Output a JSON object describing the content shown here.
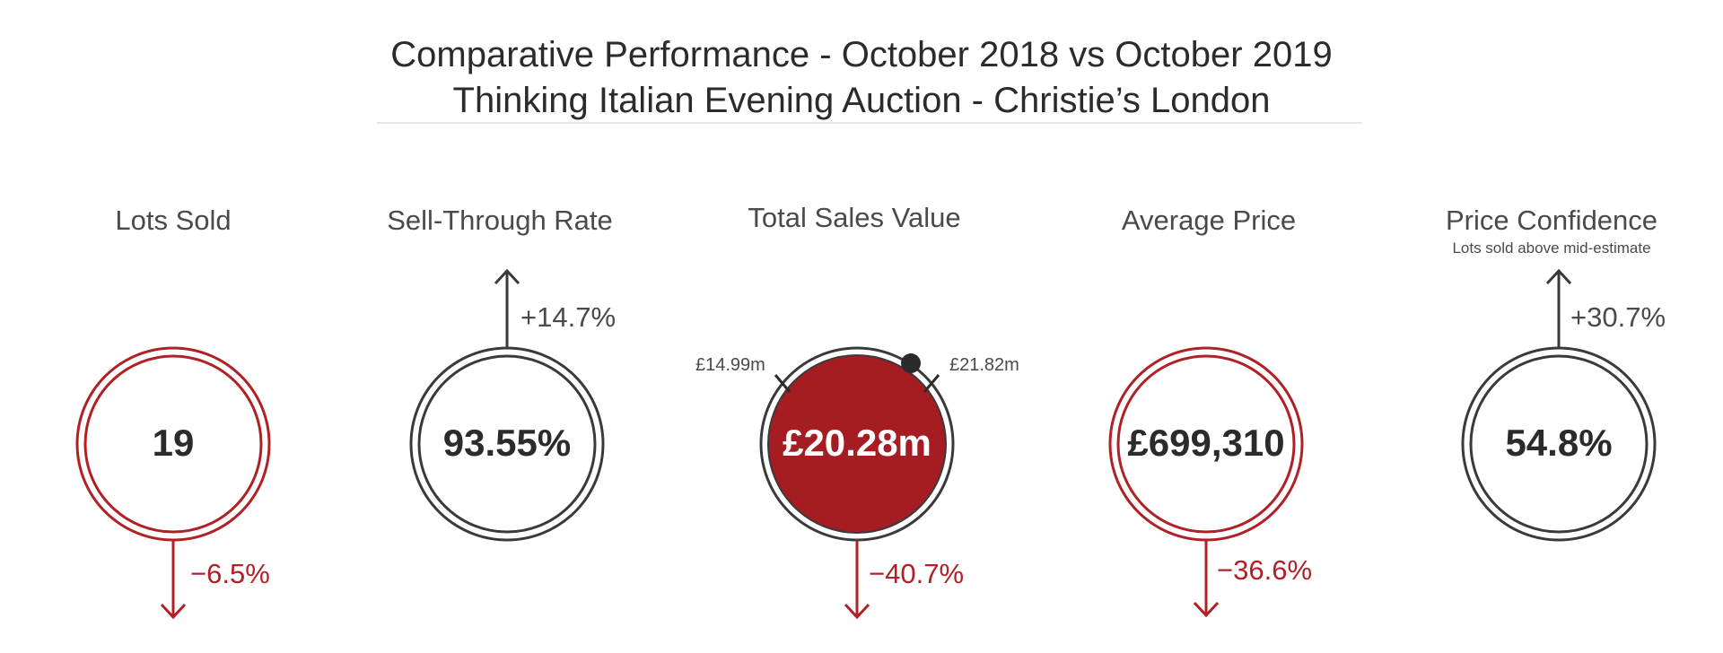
{
  "header": {
    "title_line1": "Comparative Performance - October 2018 vs October 2019",
    "title_line2": "Thinking Italian Evening Auction - Christie’s London"
  },
  "colors": {
    "negative": "#b12024",
    "neutral": "#3a3a3a",
    "fill_accent": "#a51c22"
  },
  "kpis": {
    "lots_sold": {
      "label": "Lots Sold",
      "value": "19",
      "change": "−6.5%",
      "direction": "down"
    },
    "sell_through": {
      "label": "Sell-Through Rate",
      "value": "93.55%",
      "change": "+14.7%",
      "direction": "up"
    },
    "total_sales": {
      "label": "Total Sales Value",
      "value": "£20.28m",
      "change": "−40.7%",
      "direction": "down",
      "range_low": "£14.99m",
      "range_high": "£21.82m"
    },
    "average_price": {
      "label": "Average Price",
      "value": "£699,310",
      "change": "−36.6%",
      "direction": "down"
    },
    "price_confidence": {
      "label": "Price Confidence",
      "sublabel": "Lots sold above mid-estimate",
      "value": "54.8%",
      "change": "+30.7%",
      "direction": "up"
    }
  }
}
